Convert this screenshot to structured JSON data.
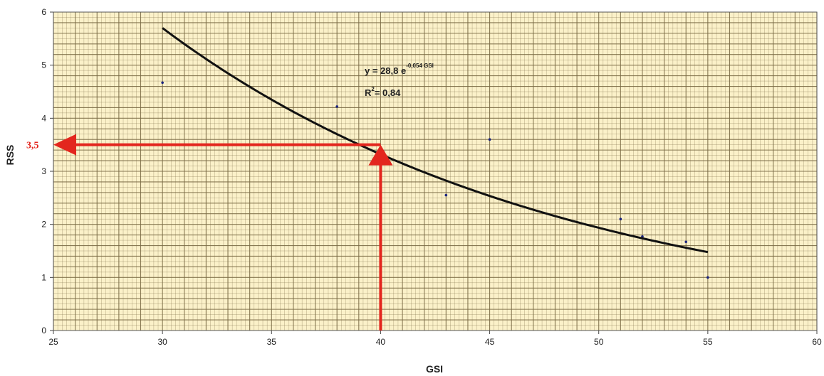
{
  "chart_data": {
    "type": "scatter",
    "xlabel": "GSI",
    "ylabel": "RSS",
    "xlim": [
      25,
      60
    ],
    "ylim": [
      0,
      6
    ],
    "x_ticks": [
      "25",
      "30",
      "35",
      "40",
      "45",
      "50",
      "55",
      "60"
    ],
    "y_ticks": [
      "0",
      "1",
      "2",
      "3",
      "4",
      "5",
      "6"
    ],
    "grid": true,
    "grid_color": "#7a6a45",
    "background_color": "#fbf1c9",
    "points": [
      {
        "x": 30,
        "y": 4.67
      },
      {
        "x": 38,
        "y": 4.22
      },
      {
        "x": 43,
        "y": 2.55
      },
      {
        "x": 45,
        "y": 3.6
      },
      {
        "x": 51,
        "y": 2.1
      },
      {
        "x": 52,
        "y": 1.77
      },
      {
        "x": 54,
        "y": 1.67
      },
      {
        "x": 55,
        "y": 1.0
      }
    ],
    "point_color": "#1a237e",
    "trendline": {
      "type": "exponential",
      "a": 28.8,
      "b": -0.054,
      "x_range": [
        30,
        55
      ],
      "color": "#111111"
    },
    "equation": {
      "prefix": "y = 28,8 e",
      "exponent": "-0,054 GSI",
      "r2_prefix": "R",
      "r2_sup": "2",
      "r2_value": "= 0,84"
    },
    "marker": {
      "x": 40,
      "y": 3.5,
      "label": "3,5",
      "color": "#e3261e"
    }
  }
}
